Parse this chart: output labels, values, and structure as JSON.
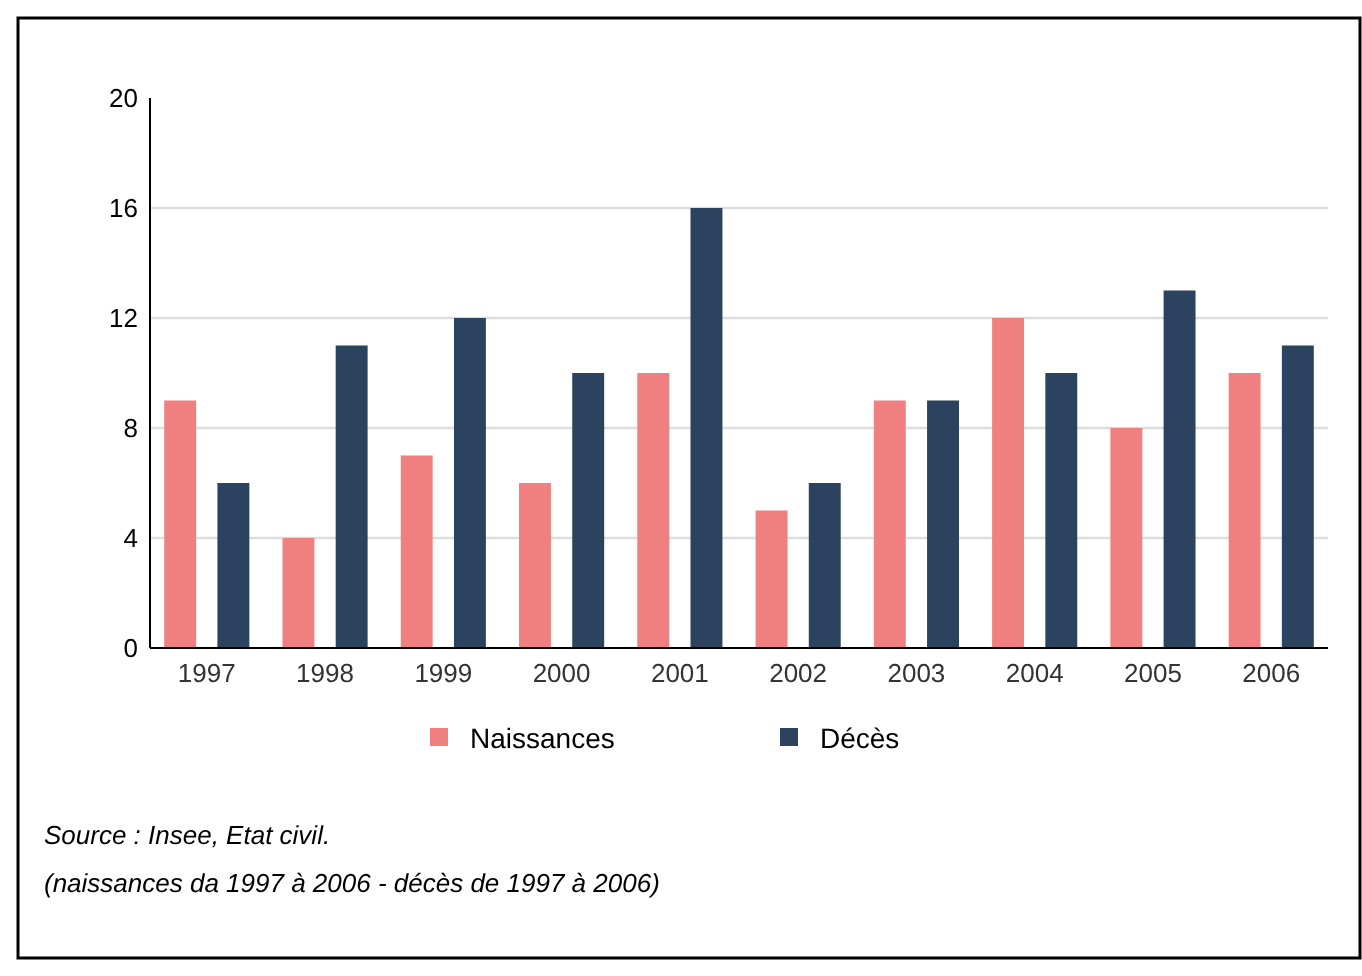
{
  "chart_data": {
    "type": "bar",
    "categories": [
      "1997",
      "1998",
      "1999",
      "2000",
      "2001",
      "2002",
      "2003",
      "2004",
      "2005",
      "2006"
    ],
    "series": [
      {
        "name": "Naissances",
        "color": "#f08080",
        "values": [
          9,
          4,
          7,
          6,
          10,
          5,
          9,
          12,
          8,
          10
        ]
      },
      {
        "name": "Décès",
        "color": "#2c4360",
        "values": [
          6,
          11,
          12,
          10,
          16,
          6,
          9,
          10,
          13,
          11
        ]
      }
    ],
    "ylim": [
      0,
      20
    ],
    "yticks": [
      0,
      4,
      8,
      12,
      16,
      20
    ],
    "grid": "y",
    "legend": "bottom",
    "annotations": [
      "Source : Insee, Etat civil.",
      "(naissances da 1997 à 2006 - décès de 1997 à  2006)"
    ]
  }
}
